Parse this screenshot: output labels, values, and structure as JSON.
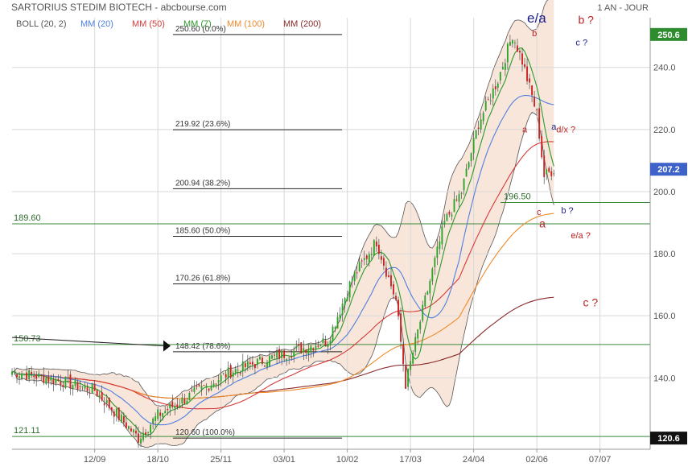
{
  "header": {
    "title": "SARTORIUS STEDIM BIOTECH - abcbourse.com",
    "period": "1 AN - JOUR"
  },
  "colors": {
    "boll": "#c9a890",
    "mm20": "#4f7fe0",
    "mm50": "#d83a3a",
    "mm7": "#2a9a2a",
    "mm100": "#ef8a2a",
    "mm200": "#8a2a2a",
    "up_candle": "#2aa52a",
    "down_candle": "#cc2222",
    "fib_line": "#222222",
    "hline": "#3a8a3a",
    "price_tag": "#2e8b2e",
    "last_tag": "#3e62c8",
    "annot_blue": "#1c1c8c",
    "annot_red": "#c02020",
    "grid": "#d8d8d8",
    "band_fill": "#f7dccb"
  },
  "chart_data": {
    "type": "candlestick",
    "title": "SARTORIUS STEDIM BIOTECH - abcbourse.com",
    "period": "1 AN - JOUR",
    "legend": [
      {
        "label": "BOLL (20, 2)",
        "color_key": "boll"
      },
      {
        "label": "MM (20)",
        "color_key": "mm20"
      },
      {
        "label": "MM (50)",
        "color_key": "mm50"
      },
      {
        "label": "MM (7)",
        "color_key": "mm7"
      },
      {
        "label": "MM (100)",
        "color_key": "mm100"
      },
      {
        "label": "MM (200)",
        "color_key": "mm200"
      }
    ],
    "y_ticks": [
      "140.0",
      "160.0",
      "180.0",
      "200.0",
      "220.0",
      "240.0"
    ],
    "y_tick_values": [
      140,
      160,
      180,
      200,
      220,
      240
    ],
    "ylim": [
      117,
      256
    ],
    "x_ticks": [
      "12/09",
      "18/10",
      "25/11",
      "03/01",
      "10/02",
      "17/03",
      "24/04",
      "02/06",
      "07/07"
    ],
    "x_tick_index": [
      34,
      60,
      86,
      112,
      138,
      164,
      190,
      216,
      242
    ],
    "x_range": [
      0,
      262
    ],
    "fibonacci": [
      {
        "label": "250.60  (0.0%)",
        "value": 250.6
      },
      {
        "label": "219.92  (23.6%)",
        "value": 219.92
      },
      {
        "label": "200.94  (38.2%)",
        "value": 200.94
      },
      {
        "label": "185.60  (50.0%)",
        "value": 185.6
      },
      {
        "label": "170.26  (61.8%)",
        "value": 170.26
      },
      {
        "label": "148.42  (78.6%)",
        "value": 148.42
      },
      {
        "label": "120.60  (100.0%)",
        "value": 120.6
      }
    ],
    "hlines": [
      {
        "label": "189.60",
        "value": 189.6
      },
      {
        "label": "150.73",
        "value": 150.73
      },
      {
        "label": "121.11",
        "value": 121.11
      },
      {
        "label": "196.50",
        "value": 196.5
      }
    ],
    "price_tags": [
      {
        "label": "250.6",
        "value": 250.6,
        "kind": "high"
      },
      {
        "label": "207.2",
        "value": 207.2,
        "kind": "last"
      },
      {
        "label": "120.6",
        "value": 120.6,
        "kind": "low"
      }
    ],
    "annotations": [
      {
        "text": "e/a",
        "x": 212,
        "y": 254.5,
        "color_key": "annot_blue",
        "size": "large"
      },
      {
        "text": "b ?",
        "x": 233,
        "y": 254,
        "color_key": "annot_red",
        "size": "medium"
      },
      {
        "text": "b",
        "x": 214,
        "y": 250,
        "color_key": "annot_red",
        "size": "small"
      },
      {
        "text": "c ?",
        "x": 232,
        "y": 247,
        "color_key": "annot_blue",
        "size": "small"
      },
      {
        "text": "a",
        "x": 222,
        "y": 220,
        "color_key": "annot_blue",
        "size": "small"
      },
      {
        "text": "d/x ?",
        "x": 224,
        "y": 219,
        "color_key": "annot_red",
        "size": "small"
      },
      {
        "text": "a",
        "x": 210,
        "y": 219,
        "color_key": "annot_red",
        "size": "small"
      },
      {
        "text": "c",
        "x": 216,
        "y": 192.5,
        "color_key": "annot_red",
        "size": "small"
      },
      {
        "text": "b ?",
        "x": 226,
        "y": 193,
        "color_key": "annot_blue",
        "size": "small"
      },
      {
        "text": "a",
        "x": 217,
        "y": 188.5,
        "color_key": "annot_red",
        "size": "medium"
      },
      {
        "text": "e/a ?",
        "x": 230,
        "y": 185,
        "color_key": "annot_red",
        "size": "small"
      },
      {
        "text": "c ?",
        "x": 235,
        "y": 163,
        "color_key": "annot_red",
        "size": "medium"
      }
    ],
    "anchors": {
      "high": {
        "x": 206,
        "y": 250.6
      },
      "low": {
        "x": 52,
        "y": 120.6
      },
      "mid": {
        "x": 130,
        "y": 152
      },
      "dip": {
        "x": 162,
        "y": 138
      },
      "recover": {
        "x": 178,
        "y": 190
      },
      "last": {
        "x": 223,
        "y": 207.2
      }
    },
    "mm_end": {
      "mm20": 228,
      "mm50": 216,
      "mm100": 193,
      "mm200": 166
    }
  }
}
